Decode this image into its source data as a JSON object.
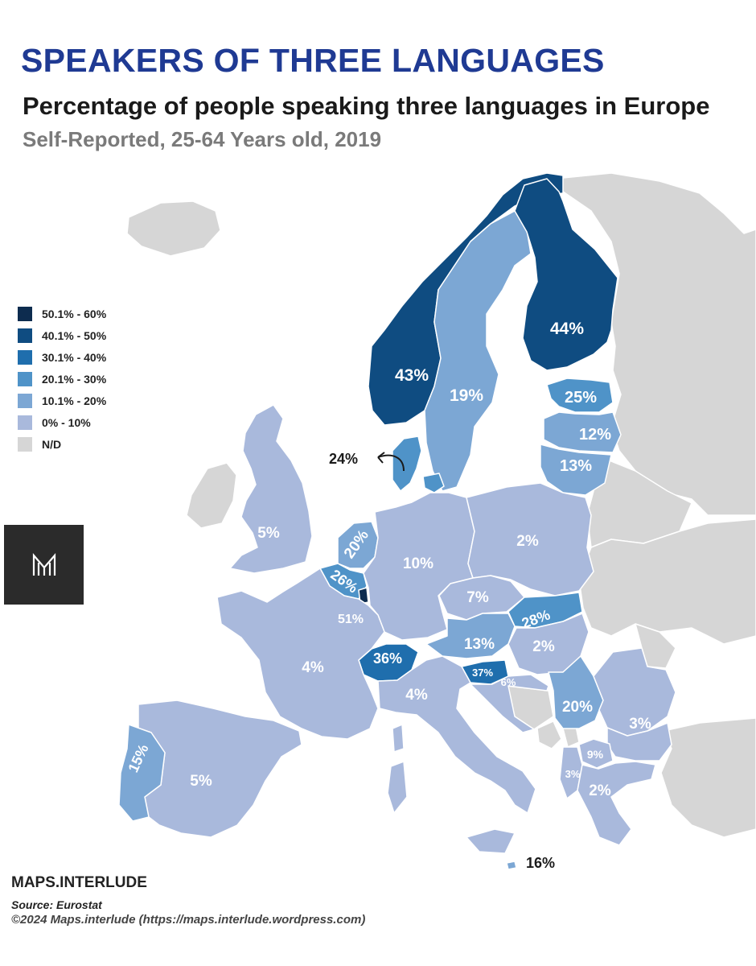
{
  "header": {
    "title": "SPEAKERS OF THREE LANGUAGES",
    "subtitle": "Percentage of people speaking three languages in Europe",
    "subsubtitle": "Self-Reported, 25-64 Years old, 2019"
  },
  "legend": [
    {
      "label": "50.1% - 60%",
      "color": "#0d2c4f"
    },
    {
      "label": "40.1% - 50%",
      "color": "#0f4c81"
    },
    {
      "label": "30.1% - 40%",
      "color": "#1f6ead"
    },
    {
      "label": "20.1% - 30%",
      "color": "#4f93c8"
    },
    {
      "label": "10.1% - 20%",
      "color": "#7ca7d4"
    },
    {
      "label": "0% - 10%",
      "color": "#a9b9dc"
    },
    {
      "label": "N/D",
      "color": "#d6d6d6"
    }
  ],
  "colors": {
    "nd": "#d6d6d6",
    "sea": "#ffffff",
    "border": "#ffffff",
    "dark_label": "#1a1a1a",
    "light_label": "#ffffff"
  },
  "countries": {
    "norway": {
      "label": "43%",
      "value": 43
    },
    "sweden": {
      "label": "19%",
      "value": 19
    },
    "finland": {
      "label": "44%",
      "value": 44
    },
    "estonia": {
      "label": "25%",
      "value": 25
    },
    "latvia": {
      "label": "12%",
      "value": 12
    },
    "lithuania": {
      "label": "13%",
      "value": 13
    },
    "denmark": {
      "label": "24%",
      "value": 24
    },
    "uk": {
      "label": "5%",
      "value": 5
    },
    "ireland": {
      "label": "",
      "value": null
    },
    "netherlands": {
      "label": "20%",
      "value": 20
    },
    "belgium": {
      "label": "26%",
      "value": 26
    },
    "luxembourg": {
      "label": "51%",
      "value": 51
    },
    "germany": {
      "label": "10%",
      "value": 10
    },
    "poland": {
      "label": "2%",
      "value": 2
    },
    "czechia": {
      "label": "7%",
      "value": 7
    },
    "slovakia": {
      "label": "28%",
      "value": 28
    },
    "austria": {
      "label": "13%",
      "value": 13
    },
    "hungary": {
      "label": "2%",
      "value": 2
    },
    "switzerland": {
      "label": "36%",
      "value": 36
    },
    "slovenia": {
      "label": "37%",
      "value": 37
    },
    "croatia": {
      "label": "6%",
      "value": 6
    },
    "serbia": {
      "label": "20%",
      "value": 20
    },
    "bulgaria": {
      "label": "3%",
      "value": 3
    },
    "north_macedonia": {
      "label": "9%",
      "value": 9
    },
    "albania": {
      "label": "3%",
      "value": 3
    },
    "greece": {
      "label": "2%",
      "value": 2
    },
    "france": {
      "label": "4%",
      "value": 4
    },
    "italy": {
      "label": "4%",
      "value": 4
    },
    "spain": {
      "label": "5%",
      "value": 5
    },
    "portugal": {
      "label": "15%",
      "value": 15
    },
    "malta": {
      "label": "16%",
      "value": 16
    }
  },
  "footer": {
    "brand": "MAPS.INTERLUDE",
    "source": "Source: Eurostat",
    "copyright": "©2024 Maps.interlude (https://maps.interlude.wordpress.com)"
  }
}
